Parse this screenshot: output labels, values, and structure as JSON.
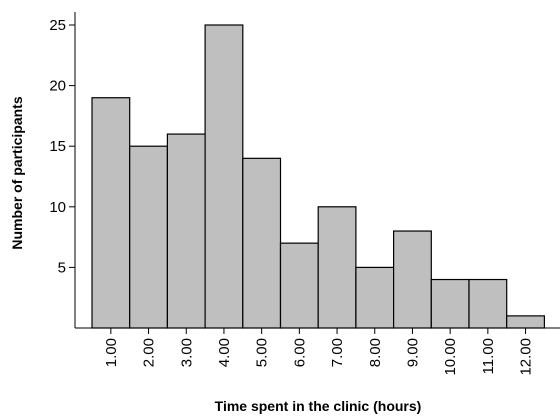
{
  "chart_data": {
    "type": "bar",
    "title": "",
    "xlabel": "Time spent in the clinic (hours)",
    "ylabel": "Number of participants",
    "categories": [
      "1.00",
      "2.00",
      "3.00",
      "4.00",
      "5.00",
      "6.00",
      "7.00",
      "8.00",
      "9.00",
      "10.00",
      "11.00",
      "12.00"
    ],
    "values": [
      19,
      15,
      16,
      25,
      14,
      7,
      10,
      5,
      8,
      4,
      4,
      1
    ],
    "ylim": [
      0,
      26
    ],
    "yticks": [
      5,
      10,
      15,
      20,
      25
    ],
    "grid": false,
    "bar_color": "#bfbfbf",
    "edge_color": "#000000"
  }
}
